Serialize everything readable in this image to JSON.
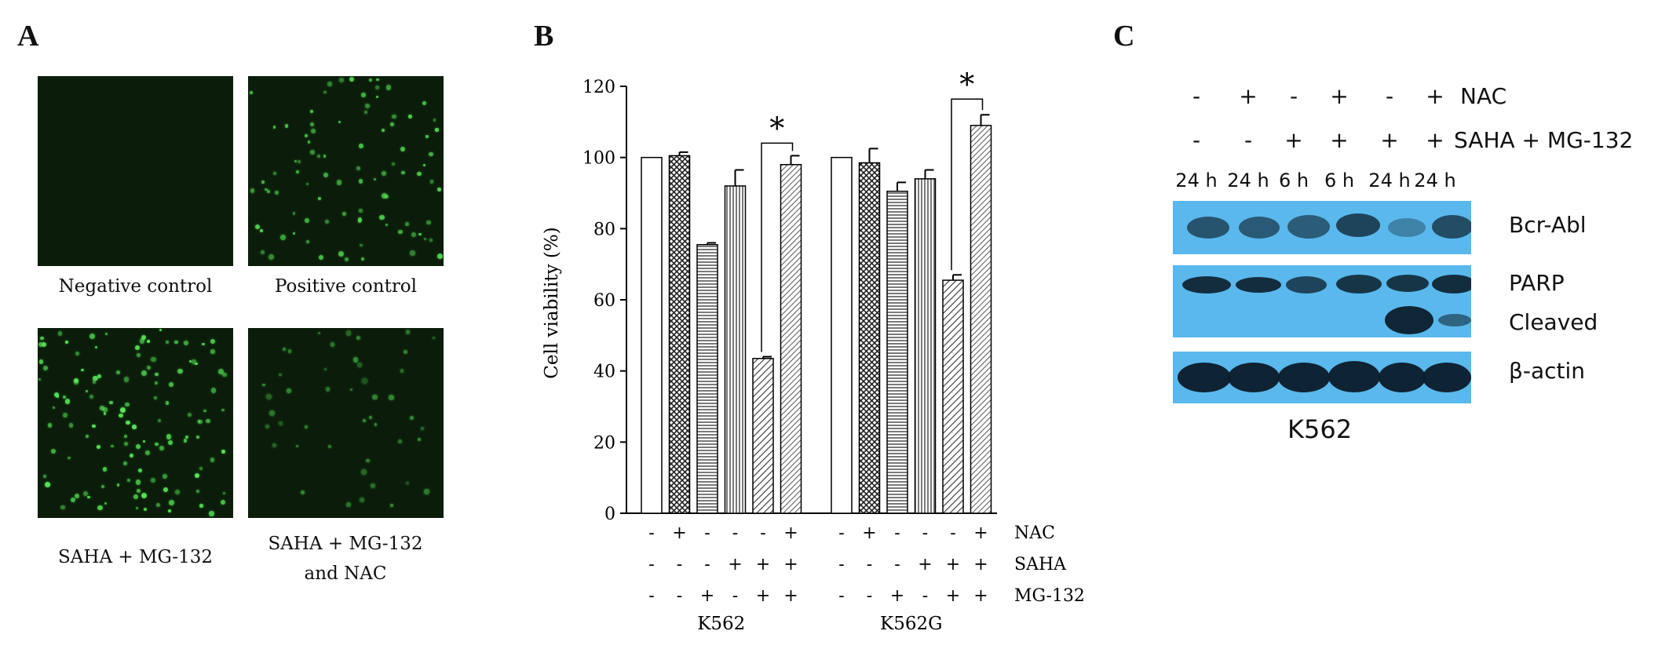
{
  "panels": {
    "a": {
      "letter": "A",
      "captions": [
        "Negative control",
        "Positive control",
        "SAHA + MG-132",
        "SAHA + MG-132",
        "and NAC"
      ]
    },
    "b": {
      "letter": "B"
    },
    "c": {
      "letter": "C"
    }
  },
  "chart_data": {
    "type": "bar",
    "ylabel": "Cell viability (%)",
    "ylim": [
      0,
      120
    ],
    "yticks": [
      0,
      20,
      40,
      60,
      80,
      100,
      120
    ],
    "groups": [
      {
        "name": "K562",
        "values": [
          100,
          100.5,
          75.5,
          92,
          43.5,
          98
        ],
        "errors": [
          0,
          1,
          0.5,
          4.5,
          0.5,
          2.5
        ]
      },
      {
        "name": "K562G",
        "values": [
          100,
          98.5,
          90.5,
          94,
          65.5,
          109
        ],
        "errors": [
          0,
          4,
          2.5,
          2.5,
          1.5,
          3
        ]
      }
    ],
    "bar_styles": [
      "open",
      "crosshatch",
      "horizontal",
      "vertical",
      "diagonal",
      "diagonal-dense"
    ],
    "treatment_rows": [
      {
        "label": "NAC",
        "signs": [
          "-",
          "+",
          "-",
          "-",
          "-",
          "+"
        ]
      },
      {
        "label": "SAHA",
        "signs": [
          "-",
          "-",
          "-",
          "+",
          "+",
          "+"
        ]
      },
      {
        "label": "MG-132",
        "signs": [
          "-",
          "-",
          "+",
          "-",
          "+",
          "+"
        ]
      }
    ],
    "significance": [
      {
        "group": "K562",
        "between": [
          4,
          5
        ],
        "label": "*"
      },
      {
        "group": "K562G",
        "between": [
          4,
          5
        ],
        "label": "*"
      }
    ]
  },
  "western": {
    "nac_label": "NAC",
    "treat_label": "SAHA + MG-132",
    "nac_signs": [
      "-",
      "+",
      "-",
      "+",
      "-",
      "+"
    ],
    "treat_signs": [
      "-",
      "-",
      "+",
      "+",
      "+",
      "+"
    ],
    "times": [
      "24 h",
      "24 h",
      "6 h",
      "6 h",
      "24 h",
      "24 h"
    ],
    "bands": {
      "bcr": "Bcr-Abl",
      "parp": "PARP",
      "cleaved": "Cleaved",
      "actin": "β-actin"
    },
    "cell_line": "K562",
    "blot_color": "#5ab8ec"
  }
}
